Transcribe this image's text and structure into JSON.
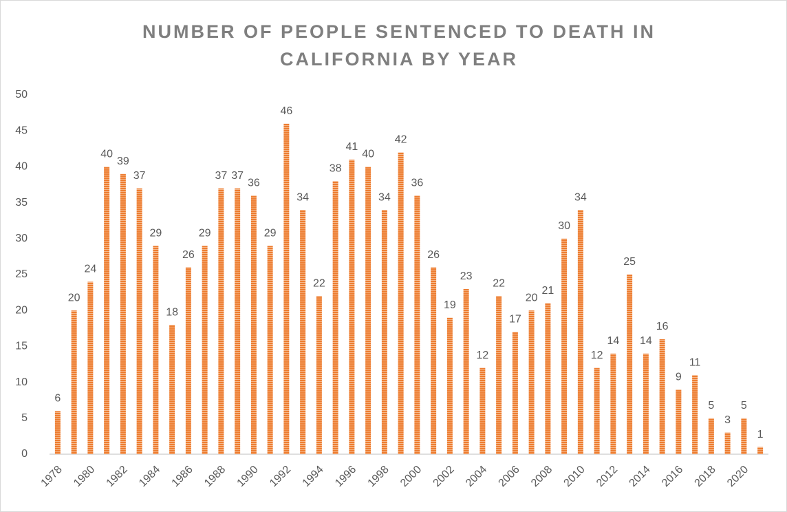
{
  "chart_data": {
    "type": "bar",
    "title": [
      "NUMBER OF PEOPLE SENTENCED TO DEATH IN",
      "CALIFORNIA BY YEAR"
    ],
    "categories": [
      "1978",
      null,
      "1980",
      null,
      "1982",
      null,
      "1984",
      null,
      "1986",
      null,
      "1988",
      null,
      "1990",
      null,
      "1992",
      null,
      "1994",
      null,
      "1996",
      null,
      "1998",
      null,
      "2000",
      null,
      "2002",
      null,
      "2004",
      null,
      "2006",
      null,
      "2008",
      null,
      "2010",
      null,
      "2012",
      null,
      "2014",
      null,
      "2016",
      null,
      "2018",
      null,
      "2020",
      null
    ],
    "values": [
      6,
      20,
      24,
      40,
      39,
      37,
      29,
      18,
      26,
      29,
      37,
      37,
      36,
      29,
      46,
      34,
      22,
      38,
      41,
      40,
      34,
      42,
      36,
      26,
      19,
      23,
      12,
      22,
      17,
      20,
      21,
      30,
      34,
      12,
      14,
      25,
      14,
      16,
      9,
      11,
      5,
      3,
      5,
      1
    ],
    "color": "#ed7d31",
    "ylim": [
      0,
      50
    ],
    "yticks": [
      0,
      5,
      10,
      15,
      20,
      25,
      30,
      35,
      40,
      45,
      50
    ],
    "grid": false
  }
}
